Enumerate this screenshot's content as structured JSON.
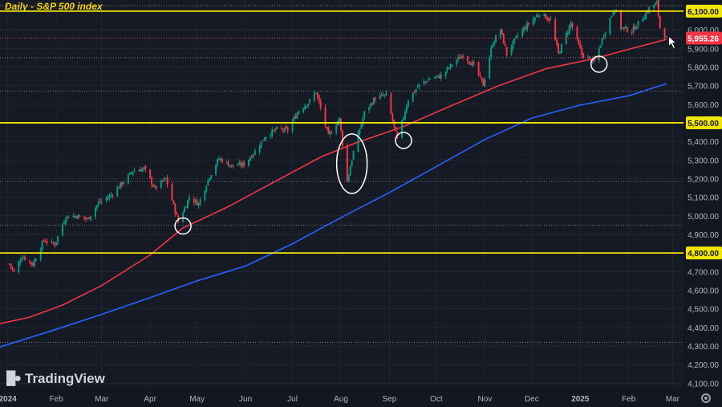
{
  "chart_data": {
    "type": "candlestick",
    "title": "Daily - S&P 500 index",
    "watermark": "TradingView",
    "x_ticks": [
      "2024",
      "Feb",
      "Mar",
      "Apr",
      "May",
      "Jun",
      "Jul",
      "Aug",
      "Sep",
      "Oct",
      "Nov",
      "Dec",
      "2025",
      "Feb",
      "Mar"
    ],
    "y_ticks": [
      4100,
      4200,
      4300,
      4400,
      4500,
      4600,
      4700,
      4800,
      4900,
      5000,
      5100,
      5200,
      5300,
      5400,
      5500,
      5600,
      5700,
      5800,
      5900,
      6000,
      6100
    ],
    "y_range": [
      4080,
      6160
    ],
    "x_range": [
      "2023-12-27",
      "2025-03-08"
    ],
    "last_price": 5955.26,
    "last_price_label": "5,955.26",
    "horizontal_levels": [
      {
        "value": 6100,
        "label": "6,100.00",
        "color": "#f2e600"
      },
      {
        "value": 5500,
        "label": "5,500.00",
        "color": "#f2e600"
      },
      {
        "value": 4800,
        "label": "4,800.00",
        "color": "#f2e600"
      }
    ],
    "dotted_levels": [
      6130,
      5850,
      5670,
      5185,
      4950,
      4320
    ],
    "close_series": [
      [
        "2024-01-02",
        4742
      ],
      [
        "2024-01-05",
        4697
      ],
      [
        "2024-01-10",
        4783
      ],
      [
        "2024-01-17",
        4739
      ],
      [
        "2024-01-24",
        4868
      ],
      [
        "2024-01-31",
        4846
      ],
      [
        "2024-02-07",
        4995
      ],
      [
        "2024-02-14",
        5000
      ],
      [
        "2024-02-21",
        4981
      ],
      [
        "2024-02-28",
        5069
      ],
      [
        "2024-03-06",
        5104
      ],
      [
        "2024-03-13",
        5165
      ],
      [
        "2024-03-21",
        5241
      ],
      [
        "2024-03-28",
        5254
      ],
      [
        "2024-04-04",
        5147
      ],
      [
        "2024-04-11",
        5199
      ],
      [
        "2024-04-19",
        4967
      ],
      [
        "2024-04-26",
        5099
      ],
      [
        "2024-05-02",
        5064
      ],
      [
        "2024-05-09",
        5214
      ],
      [
        "2024-05-15",
        5308
      ],
      [
        "2024-05-23",
        5268
      ],
      [
        "2024-05-31",
        5277
      ],
      [
        "2024-06-07",
        5346
      ],
      [
        "2024-06-14",
        5431
      ],
      [
        "2024-06-21",
        5464
      ],
      [
        "2024-06-28",
        5460
      ],
      [
        "2024-07-05",
        5567
      ],
      [
        "2024-07-12",
        5615
      ],
      [
        "2024-07-16",
        5667
      ],
      [
        "2024-07-24",
        5427
      ],
      [
        "2024-07-31",
        5522
      ],
      [
        "2024-08-05",
        5186
      ],
      [
        "2024-08-09",
        5344
      ],
      [
        "2024-08-16",
        5554
      ],
      [
        "2024-08-23",
        5634
      ],
      [
        "2024-08-30",
        5648
      ],
      [
        "2024-09-06",
        5408
      ],
      [
        "2024-09-13",
        5626
      ],
      [
        "2024-09-20",
        5702
      ],
      [
        "2024-09-27",
        5738
      ],
      [
        "2024-10-04",
        5751
      ],
      [
        "2024-10-11",
        5815
      ],
      [
        "2024-10-18",
        5864
      ],
      [
        "2024-10-25",
        5808
      ],
      [
        "2024-10-31",
        5705
      ],
      [
        "2024-11-06",
        5929
      ],
      [
        "2024-11-11",
        6001
      ],
      [
        "2024-11-15",
        5870
      ],
      [
        "2024-11-22",
        5969
      ],
      [
        "2024-11-29",
        6032
      ],
      [
        "2024-12-06",
        6090
      ],
      [
        "2024-12-13",
        6051
      ],
      [
        "2024-12-18",
        5872
      ],
      [
        "2024-12-26",
        6037
      ],
      [
        "2025-01-02",
        5868
      ],
      [
        "2025-01-10",
        5827
      ],
      [
        "2025-01-17",
        5997
      ],
      [
        "2025-01-23",
        6119
      ],
      [
        "2025-01-27",
        6012
      ],
      [
        "2025-02-03",
        5994
      ],
      [
        "2025-02-10",
        6066
      ],
      [
        "2025-02-14",
        6114
      ],
      [
        "2025-02-19",
        6144
      ],
      [
        "2025-02-21",
        6013
      ],
      [
        "2025-02-25",
        5955
      ]
    ],
    "series": [
      {
        "name": "",
        "color": "#f23645",
        "values": [
          [
            "2023-12-27",
            4420
          ],
          [
            "2024-01-15",
            4455
          ],
          [
            "2024-02-05",
            4520
          ],
          [
            "2024-03-01",
            4625
          ],
          [
            "2024-04-01",
            4790
          ],
          [
            "2024-04-22",
            4935
          ],
          [
            "2024-05-20",
            5045
          ],
          [
            "2024-06-20",
            5185
          ],
          [
            "2024-07-20",
            5320
          ],
          [
            "2024-08-10",
            5390
          ],
          [
            "2024-09-10",
            5480
          ],
          [
            "2024-10-10",
            5590
          ],
          [
            "2024-11-10",
            5700
          ],
          [
            "2024-12-10",
            5790
          ],
          [
            "2025-01-10",
            5845
          ],
          [
            "2025-02-01",
            5895
          ],
          [
            "2025-02-25",
            5948
          ]
        ]
      },
      {
        "name": "",
        "color": "#2962ff",
        "values": [
          [
            "2023-12-27",
            4295
          ],
          [
            "2024-02-01",
            4390
          ],
          [
            "2024-03-01",
            4470
          ],
          [
            "2024-04-01",
            4560
          ],
          [
            "2024-05-01",
            4650
          ],
          [
            "2024-06-01",
            4730
          ],
          [
            "2024-07-01",
            4850
          ],
          [
            "2024-08-01",
            4990
          ],
          [
            "2024-09-01",
            5125
          ],
          [
            "2024-10-01",
            5265
          ],
          [
            "2024-11-01",
            5410
          ],
          [
            "2024-12-01",
            5525
          ],
          [
            "2025-01-01",
            5595
          ],
          [
            "2025-02-01",
            5645
          ],
          [
            "2025-02-25",
            5710
          ]
        ]
      }
    ],
    "annotations": [
      {
        "shape": "circle",
        "date": "2024-04-22",
        "value": 4945
      },
      {
        "shape": "ellipse",
        "date": "2024-08-08",
        "value_from": 5120,
        "value_to": 5440
      },
      {
        "shape": "circle",
        "date": "2024-09-10",
        "value": 5405
      },
      {
        "shape": "circle",
        "date": "2025-01-13",
        "value": 5815
      }
    ],
    "grid": true,
    "candle_colors": {
      "up": "#089981",
      "down": "#f23645"
    }
  }
}
